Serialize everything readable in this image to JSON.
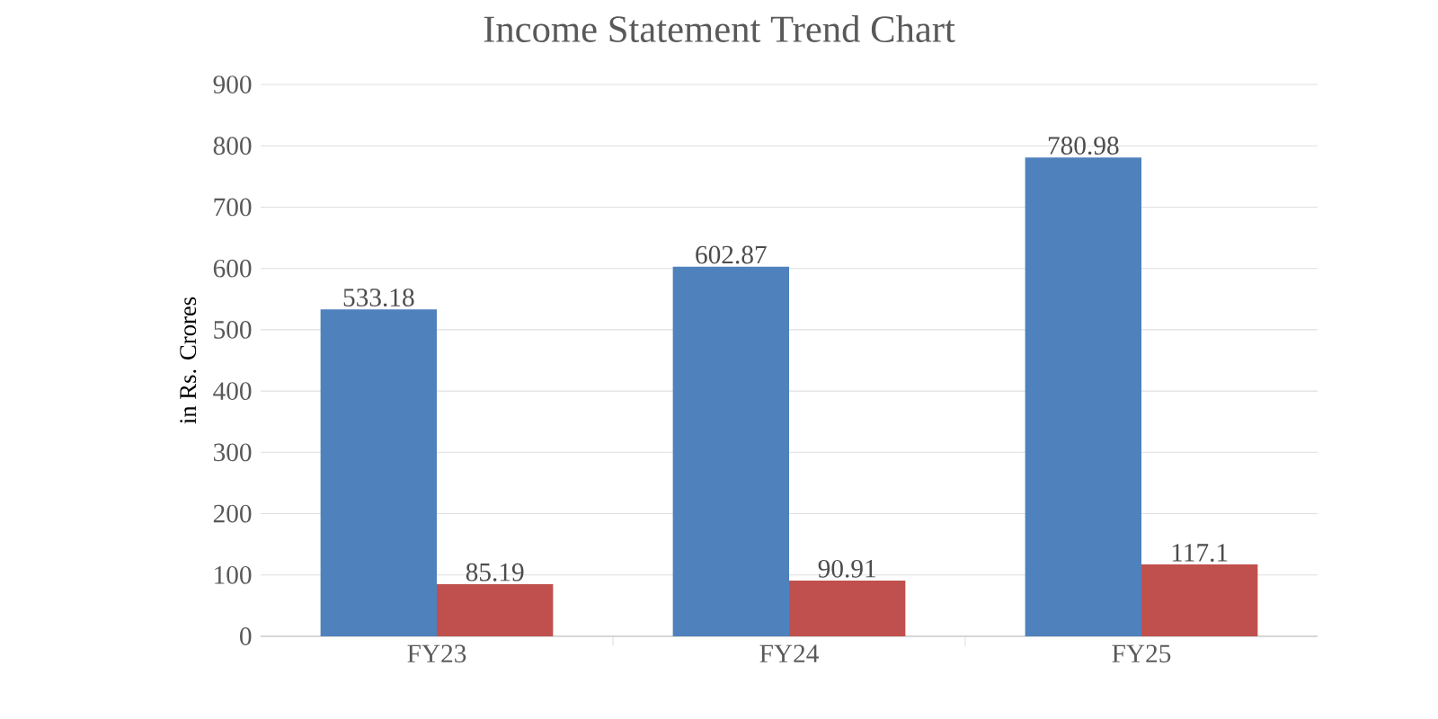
{
  "chart_data": {
    "type": "bar",
    "title": "Income Statement Trend Chart",
    "ylabel": "in Rs. Crores",
    "categories": [
      "FY23",
      "FY24",
      "FY25"
    ],
    "series": [
      {
        "color": "#4f81bd",
        "values": [
          533.18,
          602.87,
          780.98
        ]
      },
      {
        "color": "#c0504d",
        "values": [
          85.19,
          90.91,
          117.1
        ]
      }
    ],
    "ylim": [
      0,
      900
    ],
    "yticks": [
      0,
      100,
      200,
      300,
      400,
      500,
      600,
      700,
      800,
      900
    ],
    "grid": "y",
    "data_labels": true
  }
}
